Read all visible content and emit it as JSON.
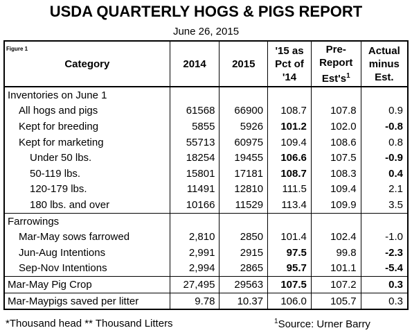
{
  "header": {
    "title": "USDA QUARTERLY HOGS & PIGS REPORT",
    "date": "June 26, 2015",
    "figure": "Figure 1"
  },
  "table": {
    "columns": [
      {
        "text": "Category"
      },
      {
        "text": "2014"
      },
      {
        "text": "2015"
      },
      {
        "text": "'15 as Pct of '14"
      },
      {
        "text": "Pre-Report Est's",
        "note": "1"
      },
      {
        "text": "Actual minus Est."
      }
    ],
    "groups": [
      {
        "rows": [
          {
            "label": "Inventories on June 1",
            "indent": 0
          },
          {
            "label": "All hogs and pigs",
            "indent": 1,
            "cells": [
              "61568",
              "66900",
              "108.7",
              "107.8",
              "0.9"
            ],
            "bold": []
          },
          {
            "label": "Kept for breeding",
            "indent": 1,
            "cells": [
              "5855",
              "5926",
              "101.2",
              "102.0",
              "-0.8"
            ],
            "bold": [
              2,
              4
            ]
          },
          {
            "label": "Kept for marketing",
            "indent": 1,
            "cells": [
              "55713",
              "60975",
              "109.4",
              "108.6",
              "0.8"
            ],
            "bold": []
          },
          {
            "label": "Under 50 lbs.",
            "indent": 2,
            "cells": [
              "18254",
              "19455",
              "106.6",
              "107.5",
              "-0.9"
            ],
            "bold": [
              2,
              4
            ]
          },
          {
            "label": "50-119 lbs.",
            "indent": 2,
            "cells": [
              "15801",
              "17181",
              "108.7",
              "108.3",
              "0.4"
            ],
            "bold": [
              2,
              4
            ]
          },
          {
            "label": "120-179 lbs.",
            "indent": 2,
            "cells": [
              "11491",
              "12810",
              "111.5",
              "109.4",
              "2.1"
            ],
            "bold": []
          },
          {
            "label": "180 lbs. and over",
            "indent": 2,
            "cells": [
              "10166",
              "11529",
              "113.4",
              "109.9",
              "3.5"
            ],
            "bold": []
          }
        ]
      },
      {
        "rows": [
          {
            "label": "Farrowings",
            "indent": 0
          },
          {
            "label": "Mar-May sows farrowed",
            "indent": 1,
            "cells": [
              "2,810",
              "2850",
              "101.4",
              "102.4",
              "-1.0"
            ],
            "bold": []
          },
          {
            "label": "Jun-Aug Intentions",
            "indent": 1,
            "cells": [
              "2,991",
              "2915",
              "97.5",
              "99.8",
              "-2.3"
            ],
            "bold": [
              2,
              4
            ]
          },
          {
            "label": "Sep-Nov Intentions",
            "indent": 1,
            "cells": [
              "2,994",
              "2865",
              "95.7",
              "101.1",
              "-5.4"
            ],
            "bold": [
              2,
              4
            ]
          }
        ]
      },
      {
        "rows": [
          {
            "label": "Mar-May Pig Crop",
            "indent": 0,
            "cells": [
              "27,495",
              "29563",
              "107.5",
              "107.2",
              "0.3"
            ],
            "bold": [
              2,
              4
            ]
          }
        ]
      },
      {
        "rows": [
          {
            "label": "Mar-Maypigs saved per litter",
            "indent": 0,
            "cells": [
              "9.78",
              "10.37",
              "106.0",
              "105.7",
              "0.3"
            ],
            "bold": []
          }
        ]
      }
    ]
  },
  "footer": {
    "units": "*Thousand head  ** Thousand Litters",
    "source": {
      "note": "1",
      "text": "Source: Urner Barry"
    }
  }
}
